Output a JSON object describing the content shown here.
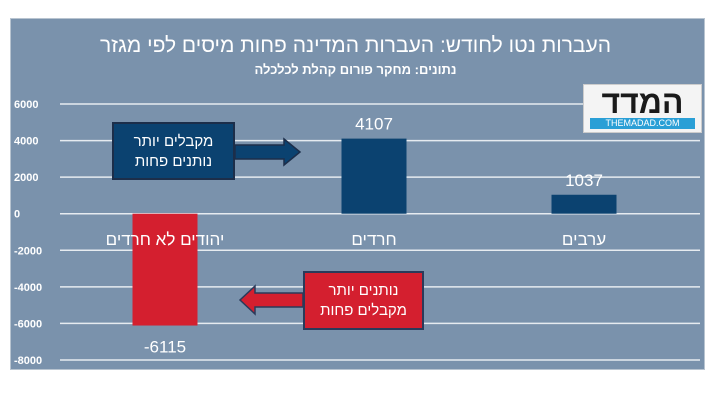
{
  "chart_data": {
    "type": "bar",
    "title": "העברות נטו לחודש: העברות המדינה פחות מיסים לפי מגזר",
    "subtitle": "נתונים: מחקר פורום קהלת לכלכלה",
    "categories": [
      "יהודים לא חרדים",
      "חרדים",
      "ערבים"
    ],
    "values": [
      -6115,
      4107,
      1037
    ],
    "data_labels": [
      "-6115",
      "4107",
      "1037"
    ],
    "colors": [
      "#d41f2f",
      "#0b4270",
      "#0b4270"
    ],
    "ylim": [
      -8000,
      6000
    ],
    "yticks": [
      6000,
      4000,
      2000,
      0,
      -2000,
      -4000,
      -6000,
      -8000
    ],
    "grid": true,
    "annotations": [
      {
        "line1": "מקבלים יותר",
        "line2": "נותנים פחות",
        "color": "#0b4270"
      },
      {
        "line1": "נותנים יותר",
        "line2": "מקבלים פחות",
        "color": "#d41f2f"
      }
    ]
  },
  "logo": {
    "hebrew": "המדד",
    "english": "THEMADAD.COM"
  }
}
